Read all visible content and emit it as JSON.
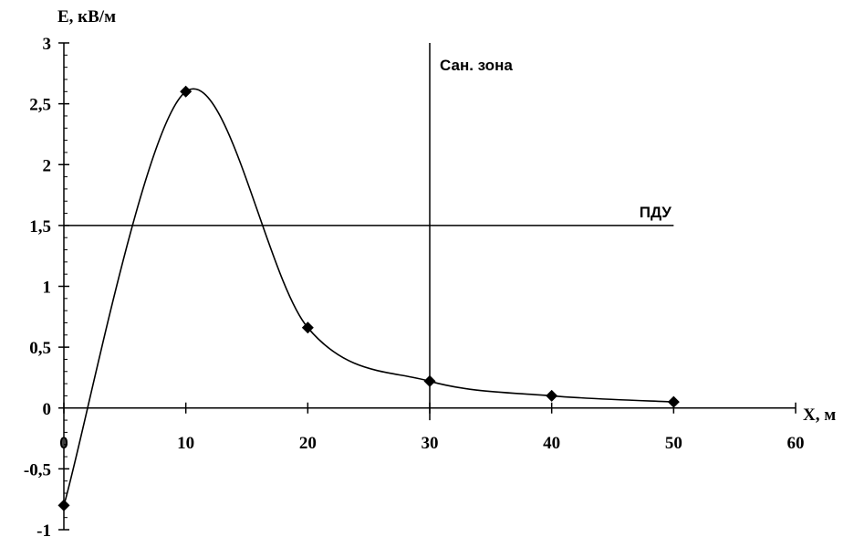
{
  "chart_data": {
    "type": "line",
    "title": "",
    "xlabel": "X, м",
    "ylabel": "E, кВ/м",
    "xlim": [
      0,
      60
    ],
    "ylim": [
      -1,
      3
    ],
    "x_ticks": [
      {
        "value": 0,
        "label": "0"
      },
      {
        "value": 10,
        "label": "10"
      },
      {
        "value": 20,
        "label": "20"
      },
      {
        "value": 30,
        "label": "30"
      },
      {
        "value": 40,
        "label": "40"
      },
      {
        "value": 50,
        "label": "50"
      },
      {
        "value": 60,
        "label": "60"
      }
    ],
    "y_ticks": [
      {
        "value": -1,
        "label": "-1"
      },
      {
        "value": -0.5,
        "label": "-0,5"
      },
      {
        "value": 0,
        "label": "0"
      },
      {
        "value": 0.5,
        "label": "0,5"
      },
      {
        "value": 1,
        "label": "1"
      },
      {
        "value": 1.5,
        "label": "1,5"
      },
      {
        "value": 2,
        "label": "2"
      },
      {
        "value": 2.5,
        "label": "2,5"
      },
      {
        "value": 3,
        "label": "3"
      }
    ],
    "y_minor_step": 0.1,
    "grid": false,
    "legend": "none",
    "series": [
      {
        "x": [
          0,
          10,
          20,
          30,
          40,
          50
        ],
        "y": [
          -0.8,
          2.6,
          0.66,
          0.22,
          0.1,
          0.05
        ],
        "marker": "diamond",
        "smooth": true,
        "color": "#000000"
      }
    ],
    "reference_lines": [
      {
        "orientation": "horizontal",
        "value": 1.5,
        "x_range": [
          0,
          50
        ],
        "label": "ПДУ"
      },
      {
        "orientation": "vertical",
        "value": 30,
        "y_range": [
          -0.1,
          3
        ],
        "label": "Сан. зона"
      }
    ]
  }
}
